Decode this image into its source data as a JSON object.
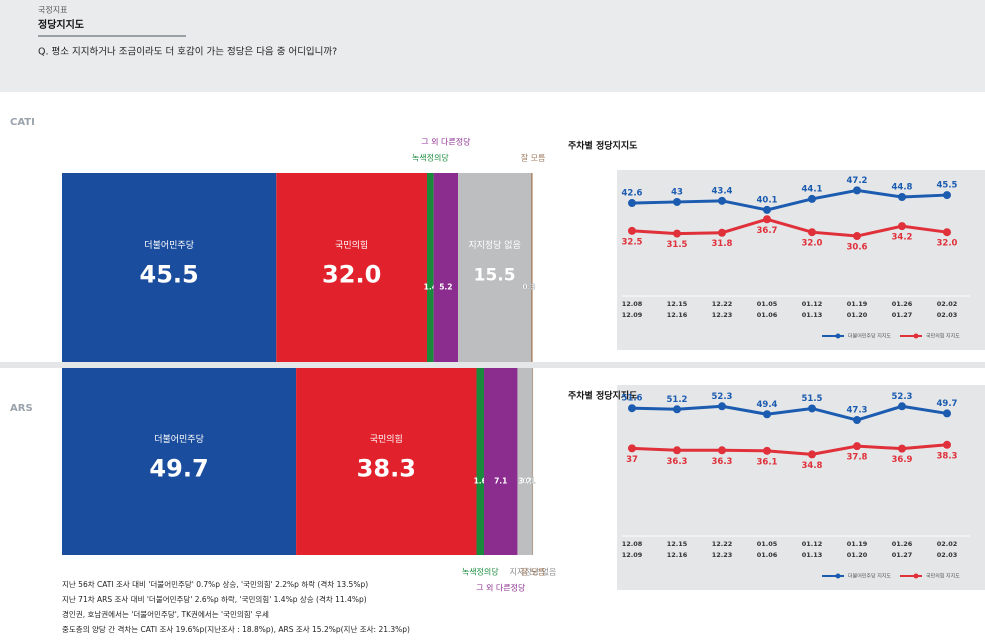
{
  "header": {
    "category": "국정지표",
    "title": "정당지지도",
    "question": "Q. 평소 지지하거나 조금이라도 더 호감이 가는 정당은 다음 중 어디입니까?"
  },
  "chart_data": [
    {
      "type": "stacked_bar",
      "section": "CATI",
      "outside_labels": "top",
      "series": [
        {
          "name": "더불어민주당",
          "color": "#1b4d9e",
          "values": [
            45.5
          ]
        },
        {
          "name": "국민의힘",
          "color": "#e1222d",
          "values": [
            32.0
          ],
          "value_labels": [
            "32.0"
          ]
        },
        {
          "name": "녹색정의당",
          "color": "#198a3c",
          "values": [
            1.4
          ]
        },
        {
          "name": "그 외 다른정당",
          "color": "#8b2d8f",
          "values": [
            5.2
          ]
        },
        {
          "name": "지지정당 없음",
          "color": "#bdbec0",
          "values": [
            15.5
          ]
        },
        {
          "name": "잘 모름",
          "color": "#a07a5c",
          "values": [
            0.3
          ]
        }
      ]
    },
    {
      "type": "line",
      "title": "주차별 정당지지도",
      "categories": [
        [
          "12.08",
          "12.09"
        ],
        [
          "12.15",
          "12.16"
        ],
        [
          "12.22",
          "12.23"
        ],
        [
          "01.05",
          "01.06"
        ],
        [
          "01.12",
          "01.13"
        ],
        [
          "01.19",
          "01.20"
        ],
        [
          "01.26",
          "01.27"
        ],
        [
          "02.02",
          "02.03"
        ]
      ],
      "series": [
        {
          "name": "더불어민주당 지지도",
          "color": "#1b5bb0",
          "values": [
            42.6,
            43.0,
            43.4,
            40.1,
            44.1,
            47.2,
            44.8,
            45.5
          ]
        },
        {
          "name": "국민의힘 지지도",
          "color": "#e0303a",
          "values": [
            32.5,
            31.5,
            31.8,
            36.7,
            32.0,
            30.6,
            34.2,
            32.0
          ],
          "value_labels": [
            "32.5",
            "31.5",
            "31.8",
            "36.7",
            "32.0",
            "30.6",
            "34.2",
            "32.0"
          ]
        }
      ]
    },
    {
      "type": "stacked_bar",
      "section": "ARS",
      "outside_labels": "bottom",
      "series": [
        {
          "name": "더불어민주당",
          "color": "#1b4d9e",
          "values": [
            49.7
          ]
        },
        {
          "name": "국민의힘",
          "color": "#e1222d",
          "values": [
            38.3
          ]
        },
        {
          "name": "녹색정의당",
          "color": "#198a3c",
          "values": [
            1.6
          ]
        },
        {
          "name": "그 외 다른정당",
          "color": "#8b2d8f",
          "values": [
            7.1
          ]
        },
        {
          "name": "지지정당 없음",
          "color": "#bdbec0",
          "values": [
            3.2
          ]
        },
        {
          "name": "잘 모름",
          "color": "#a07a5c",
          "values": [
            0.1
          ]
        }
      ]
    },
    {
      "type": "line",
      "title": "주차별 정당지지도",
      "categories": [
        [
          "12.08",
          "12.09"
        ],
        [
          "12.15",
          "12.16"
        ],
        [
          "12.22",
          "12.23"
        ],
        [
          "01.05",
          "01.06"
        ],
        [
          "01.12",
          "01.13"
        ],
        [
          "01.19",
          "01.20"
        ],
        [
          "01.26",
          "01.27"
        ],
        [
          "02.02",
          "02.03"
        ]
      ],
      "series": [
        {
          "name": "더불어민주당 지지도",
          "color": "#1b5bb0",
          "values": [
            51.6,
            51.2,
            52.3,
            49.4,
            51.5,
            47.3,
            52.3,
            49.7
          ]
        },
        {
          "name": "국민의힘 지지도",
          "color": "#e0303a",
          "values": [
            37.0,
            36.3,
            36.3,
            36.1,
            34.8,
            37.8,
            36.9,
            38.3
          ]
        }
      ]
    }
  ],
  "footnotes": [
    "지난 56차 CATI 조사 대비 '더불어민주당' 0.7%p 상승, '국민의힘' 2.2%p 하락 (격차 13.5%p)",
    "지난 71차 ARS 조사 대비 '더불어민주당' 2.6%p 하락, '국민의힘' 1.4%p 상승 (격차 11.4%p)",
    "경인권, 호남권에서는 '더불어민주당', TK권에서는 '국민의힘' 우세",
    "중도층의 양당 간 격차는 CATI 조사 19.6%p(지난조사 : 18.8%p), ARS 조사 15.2%p(지난 조사: 21.3%p)"
  ]
}
